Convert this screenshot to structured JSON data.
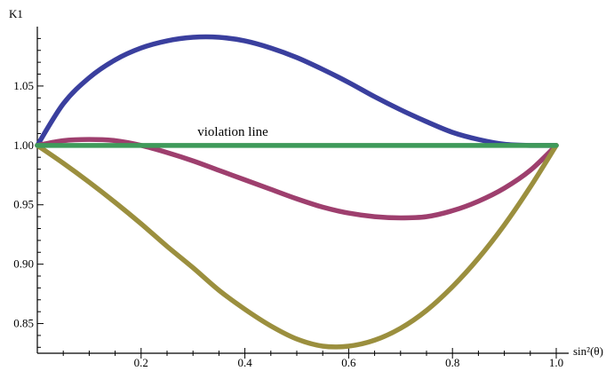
{
  "chart_data": {
    "type": "line",
    "ylabel": "K1",
    "xlabel": "sin²(θ)",
    "xlim": [
      0,
      1
    ],
    "ylim": [
      0.825,
      1.1
    ],
    "x_ticks": [
      0.2,
      0.4,
      0.6,
      0.8,
      1.0
    ],
    "x_tick_labels": [
      "0.2",
      "0.4",
      "0.6",
      "0.8",
      "1.0"
    ],
    "y_ticks": [
      0.85,
      0.9,
      0.95,
      1.0,
      1.05
    ],
    "y_tick_labels": [
      "0.85",
      "0.90",
      "0.95",
      "1.00",
      "1.05"
    ],
    "grid": false,
    "annotations": [
      {
        "text": "violation line",
        "x": 0.36,
        "y": 1.0
      }
    ],
    "series": [
      {
        "color": "#3a3f9e",
        "points": [
          [
            0,
            1.0
          ],
          [
            0.05,
            1.035
          ],
          [
            0.1,
            1.057
          ],
          [
            0.15,
            1.072
          ],
          [
            0.2,
            1.082
          ],
          [
            0.25,
            1.088
          ],
          [
            0.3,
            1.091
          ],
          [
            0.35,
            1.091
          ],
          [
            0.4,
            1.088
          ],
          [
            0.45,
            1.082
          ],
          [
            0.5,
            1.074
          ],
          [
            0.55,
            1.064
          ],
          [
            0.6,
            1.053
          ],
          [
            0.65,
            1.041
          ],
          [
            0.7,
            1.03
          ],
          [
            0.75,
            1.02
          ],
          [
            0.8,
            1.011
          ],
          [
            0.85,
            1.005
          ],
          [
            0.9,
            1.001
          ],
          [
            0.95,
            1.0
          ],
          [
            1.0,
            1.0
          ]
        ]
      },
      {
        "color": "#9e3f6e",
        "points": [
          [
            0,
            1.0
          ],
          [
            0.05,
            1.004
          ],
          [
            0.1,
            1.005
          ],
          [
            0.15,
            1.004
          ],
          [
            0.2,
            1.0
          ],
          [
            0.25,
            0.994
          ],
          [
            0.3,
            0.987
          ],
          [
            0.35,
            0.979
          ],
          [
            0.4,
            0.971
          ],
          [
            0.45,
            0.963
          ],
          [
            0.5,
            0.955
          ],
          [
            0.55,
            0.948
          ],
          [
            0.6,
            0.943
          ],
          [
            0.65,
            0.94
          ],
          [
            0.7,
            0.939
          ],
          [
            0.75,
            0.94
          ],
          [
            0.8,
            0.945
          ],
          [
            0.85,
            0.953
          ],
          [
            0.9,
            0.964
          ],
          [
            0.95,
            0.979
          ],
          [
            1.0,
            1.0
          ]
        ]
      },
      {
        "color": "#9b8f3e",
        "points": [
          [
            0,
            1.0
          ],
          [
            0.05,
            0.985
          ],
          [
            0.1,
            0.969
          ],
          [
            0.15,
            0.952
          ],
          [
            0.2,
            0.934
          ],
          [
            0.25,
            0.915
          ],
          [
            0.3,
            0.897
          ],
          [
            0.35,
            0.878
          ],
          [
            0.4,
            0.862
          ],
          [
            0.45,
            0.848
          ],
          [
            0.5,
            0.837
          ],
          [
            0.55,
            0.831
          ],
          [
            0.6,
            0.831
          ],
          [
            0.65,
            0.836
          ],
          [
            0.7,
            0.846
          ],
          [
            0.75,
            0.861
          ],
          [
            0.8,
            0.881
          ],
          [
            0.85,
            0.905
          ],
          [
            0.9,
            0.933
          ],
          [
            0.95,
            0.965
          ],
          [
            1.0,
            1.0
          ]
        ]
      },
      {
        "color": "#3f9a5a",
        "points": [
          [
            0,
            1.0
          ],
          [
            1.0,
            1.0
          ]
        ]
      }
    ]
  }
}
